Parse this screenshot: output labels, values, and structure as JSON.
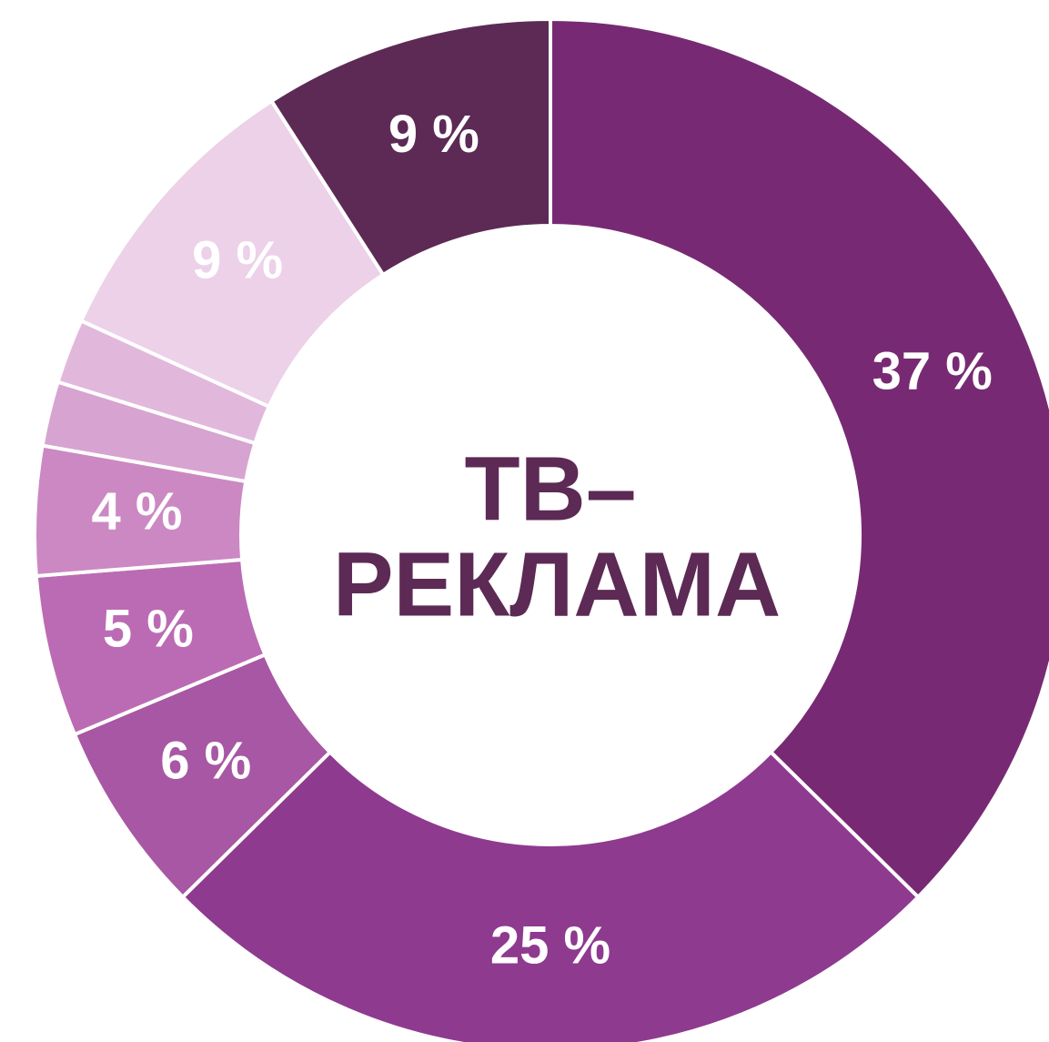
{
  "chart_data": {
    "type": "donut",
    "center_text": [
      "ТВ–",
      "РЕКЛАМА"
    ],
    "values": [
      37,
      25,
      6,
      5,
      4,
      2,
      2,
      9,
      9
    ],
    "value_labels": [
      "37 %",
      "25 %",
      "6 %",
      "5 %",
      "4 %",
      null,
      null,
      "9 %",
      "9 %"
    ],
    "colors": [
      "#772a73",
      "#8e3a8f",
      "#a757a3",
      "#bb6bb3",
      "#cb88c3",
      "#d7a3d0",
      "#e1b8dc",
      "#ecd1e8",
      "#5c2a55"
    ]
  }
}
